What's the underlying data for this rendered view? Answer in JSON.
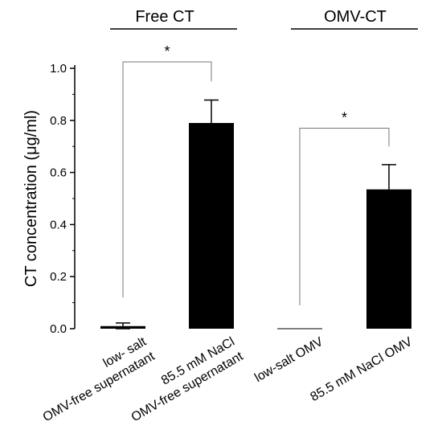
{
  "chart_data": {
    "type": "bar",
    "ylabel": "CT concentration (μg/ml)",
    "ylim": [
      0,
      1.0
    ],
    "yticks": [
      "0.0",
      "0.2",
      "0.4",
      "0.6",
      "0.8",
      "1.0"
    ],
    "categories": [
      [
        "low- salt",
        "OMV-free supernatant"
      ],
      [
        "85.5 mM NaCl",
        "OMV-free supernatant"
      ],
      [
        "low-salt OMV"
      ],
      [
        "85.5 mM NaCl OMV"
      ]
    ],
    "values": [
      0.01,
      0.79,
      0.0,
      0.535
    ],
    "errors": [
      0.012,
      0.088,
      0.0,
      0.095
    ],
    "bar_color": "#000000",
    "groups": [
      {
        "label": "Free CT",
        "categories": [
          0,
          1
        ]
      },
      {
        "label": "OMV-CT",
        "categories": [
          2,
          3
        ]
      }
    ],
    "significance": [
      {
        "between": [
          0,
          1
        ],
        "label": "*"
      },
      {
        "between": [
          2,
          3
        ],
        "label": "*"
      }
    ]
  }
}
